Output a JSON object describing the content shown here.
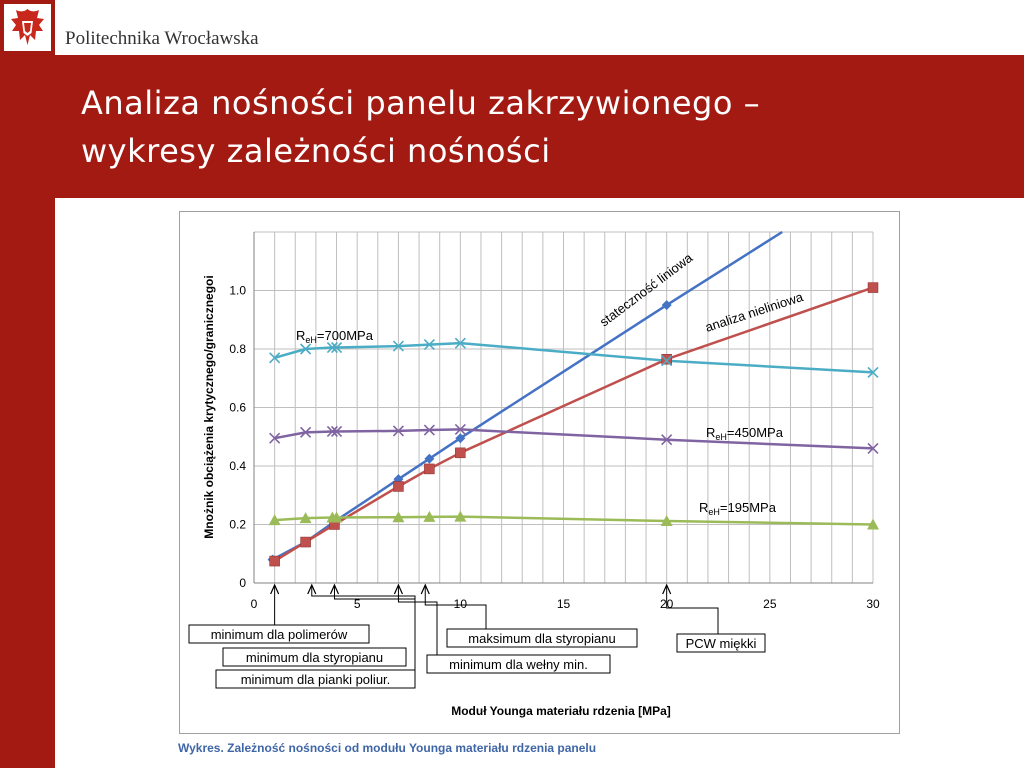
{
  "brand": {
    "name": "Politechnika Wrocławska",
    "logo": "pwr-eagle-logo"
  },
  "slide": {
    "title_line1": "Analiza nośności panelu zakrzywionego –",
    "title_line2": "wykresy zależności nośności",
    "caption": "Wykres. Zależność nośności od modułu Younga materiału rdzenia panelu"
  },
  "colors": {
    "header": "#a31a12",
    "stability": "#4472c4",
    "nonlinear": "#c0504d",
    "r700": "#4bacc6",
    "r450": "#8064a2",
    "r195": "#9bbb59",
    "caption": "#3f66a6"
  },
  "chart_data": {
    "type": "line",
    "xlabel": "Moduł Younga materiału rdzenia [MPa]",
    "ylabel": "Mnożnik obciążenia krytycznego/granicznegoi",
    "xlim": [
      0,
      30
    ],
    "ylim": [
      0,
      1.2
    ],
    "xticks": [
      "0",
      "5",
      "10",
      "15",
      "20",
      "25",
      "30"
    ],
    "yticks": [
      "0",
      "0.2",
      "0.4",
      "0.6",
      "0.8",
      "1.0"
    ],
    "grid": true,
    "series": [
      {
        "name": "stateczność liniowa",
        "marker": "diamond",
        "color": "#4472c4",
        "x": [
          0.9,
          2.5,
          3.9,
          7,
          8.5,
          10,
          20,
          25.6
        ],
        "y": [
          0.08,
          0.14,
          0.21,
          0.355,
          0.425,
          0.495,
          0.95,
          1.2
        ]
      },
      {
        "name": "analiza nieliniowa",
        "marker": "square",
        "color": "#c0504d",
        "x": [
          1,
          2.5,
          3.9,
          7,
          8.5,
          10,
          20,
          30
        ],
        "y": [
          0.075,
          0.14,
          0.2,
          0.33,
          0.39,
          0.445,
          0.765,
          1.01
        ]
      },
      {
        "name": "R_eH=700MPa",
        "marker": "x",
        "color": "#4bacc6",
        "x": [
          1,
          2.5,
          3.8,
          4,
          7,
          8.5,
          10,
          20,
          30
        ],
        "y": [
          0.77,
          0.8,
          0.805,
          0.805,
          0.81,
          0.815,
          0.82,
          0.76,
          0.72
        ]
      },
      {
        "name": "R_eH=450MPa",
        "marker": "x",
        "color": "#8064a2",
        "x": [
          1,
          2.5,
          3.8,
          4,
          7,
          8.5,
          10,
          20,
          30
        ],
        "y": [
          0.495,
          0.515,
          0.518,
          0.518,
          0.52,
          0.523,
          0.525,
          0.49,
          0.46
        ]
      },
      {
        "name": "R_eH=195MPa",
        "marker": "triangle",
        "color": "#9bbb59",
        "x": [
          1,
          2.5,
          3.8,
          4,
          7,
          8.5,
          10,
          20,
          30
        ],
        "y": [
          0.215,
          0.222,
          0.224,
          0.224,
          0.225,
          0.226,
          0.227,
          0.212,
          0.2
        ]
      }
    ],
    "labels": {
      "stability": "stateczność liniowa",
      "nonlinear": "analiza nieliniowa",
      "r700_main": "R",
      "r700_sub": "eH",
      "r700_rest": "=700MPa",
      "r450_main": "R",
      "r450_sub": "eH",
      "r450_rest": "=450MPa",
      "r195_main": "R",
      "r195_sub": "eH",
      "r195_rest": "=195MPa"
    },
    "annotations": [
      {
        "text": "minimum  dla polimerów",
        "x": 1
      },
      {
        "text": "minimum  dla styropianu",
        "x": 2.8
      },
      {
        "text": "minimum  dla pianki poliur.",
        "x": 3.9
      },
      {
        "text": "minimum dla wełny min.",
        "x": 7
      },
      {
        "text": "maksimum dla styropianu",
        "x": 8.3
      },
      {
        "text": "PCW miękki",
        "x": 20
      }
    ]
  }
}
